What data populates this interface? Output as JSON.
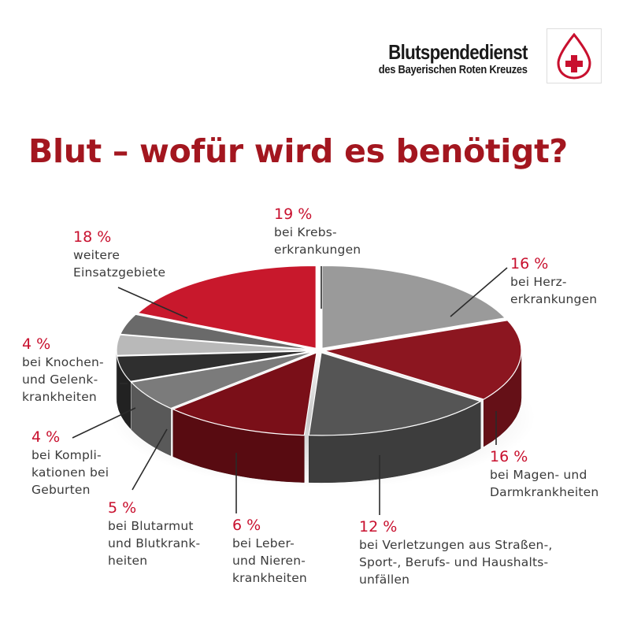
{
  "header": {
    "org_name": "Blutspendedienst",
    "org_subtitle": "des Bayerischen Roten Kreuzes",
    "title": "Blut – wofür wird es benötigt?"
  },
  "colors": {
    "title": "#a3161f",
    "percent": "#c8102e",
    "text": "#3a3a3a",
    "logo": "#c8102e"
  },
  "logo_icon": "blood-drop-red-cross-icon",
  "chart_data": {
    "type": "pie",
    "style": "3d-exploded",
    "unit": "%",
    "slices": [
      {
        "pct": "19 %",
        "label": "bei Krebs-\nerkrankungen",
        "value": 19,
        "color": "#9a9a9a"
      },
      {
        "pct": "16 %",
        "label": "bei Herz-\nerkrankungen",
        "value": 16,
        "color": "#8c1620"
      },
      {
        "pct": "16 %",
        "label": "bei Magen- und\nDarmkrankheiten",
        "value": 16,
        "color": "#555555"
      },
      {
        "pct": "12 %",
        "label": "bei Verletzungen aus Straßen-,\nSport-, Berufs- und Haushalts-\nunfällen",
        "value": 12,
        "color": "#7a0f18"
      },
      {
        "pct": "6 %",
        "label": "bei Leber-\nund Nieren-\nkrankheiten",
        "value": 6,
        "color": "#7b7b7b"
      },
      {
        "pct": "5 %",
        "label": "bei Blutarmut\nund Blutkrank-\nheiten",
        "value": 5,
        "color": "#2f2f2f"
      },
      {
        "pct": "4 %",
        "label": "bei Kompli-\nkationen bei\nGeburten",
        "value": 4,
        "color": "#b9b9b9"
      },
      {
        "pct": "4 %",
        "label": "bei Knochen-\nund Gelenk-\nkrankheiten",
        "value": 4,
        "color": "#6a6a6a"
      },
      {
        "pct": "18 %",
        "label": "weitere\nEinsatzgebiete",
        "value": 18,
        "color": "#c8182c"
      }
    ]
  }
}
